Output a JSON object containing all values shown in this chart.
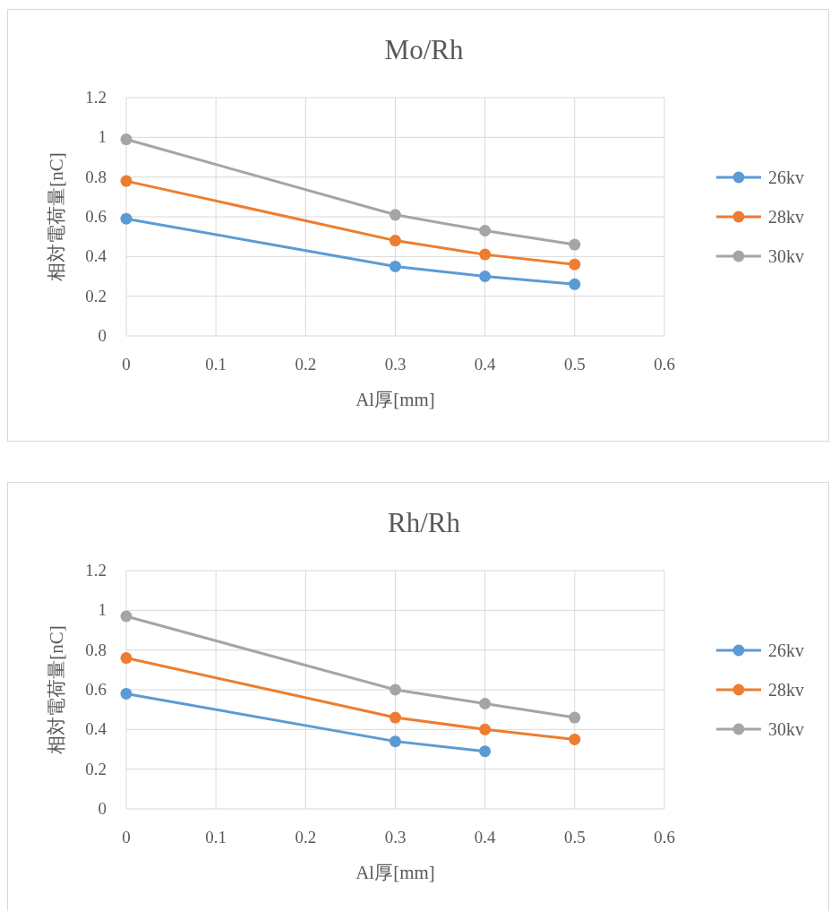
{
  "chart_data": [
    {
      "type": "line",
      "title": "Mo/Rh",
      "xlabel": "Al厚[mm]",
      "ylabel": "相対電荷量[nC]",
      "x": [
        0,
        0.3,
        0.4,
        0.5
      ],
      "series": [
        {
          "name": "26kv",
          "color": "#5b9bd5",
          "values": [
            0.59,
            0.35,
            0.3,
            0.26
          ]
        },
        {
          "name": "28kv",
          "color": "#ed7d31",
          "values": [
            0.78,
            0.48,
            0.41,
            0.36
          ]
        },
        {
          "name": "30kv",
          "color": "#a5a5a5",
          "values": [
            0.99,
            0.61,
            0.53,
            0.46
          ]
        }
      ],
      "xlim": [
        0,
        0.6
      ],
      "xticks": [
        0,
        0.1,
        0.2,
        0.3,
        0.4,
        0.5,
        0.6
      ],
      "ylim": [
        0,
        1.2
      ],
      "yticks": [
        0,
        0.2,
        0.4,
        0.6,
        0.8,
        1,
        1.2
      ],
      "grid": true,
      "legend": "right",
      "marker": "circle"
    },
    {
      "type": "line",
      "title": "Rh/Rh",
      "xlabel": "Al厚[mm]",
      "ylabel": "相対電荷量[nC]",
      "x": [
        0,
        0.3,
        0.4,
        0.5
      ],
      "series": [
        {
          "name": "26kv",
          "color": "#5b9bd5",
          "values": [
            0.58,
            0.34,
            0.29,
            null
          ]
        },
        {
          "name": "28kv",
          "color": "#ed7d31",
          "values": [
            0.76,
            0.46,
            0.4,
            0.35
          ]
        },
        {
          "name": "30kv",
          "color": "#a5a5a5",
          "values": [
            0.97,
            0.6,
            0.53,
            0.46
          ]
        }
      ],
      "xlim": [
        0,
        0.6
      ],
      "xticks": [
        0,
        0.1,
        0.2,
        0.3,
        0.4,
        0.5,
        0.6
      ],
      "ylim": [
        0,
        1.2
      ],
      "yticks": [
        0,
        0.2,
        0.4,
        0.6,
        0.8,
        1,
        1.2
      ],
      "grid": true,
      "legend": "right",
      "marker": "circle"
    }
  ]
}
